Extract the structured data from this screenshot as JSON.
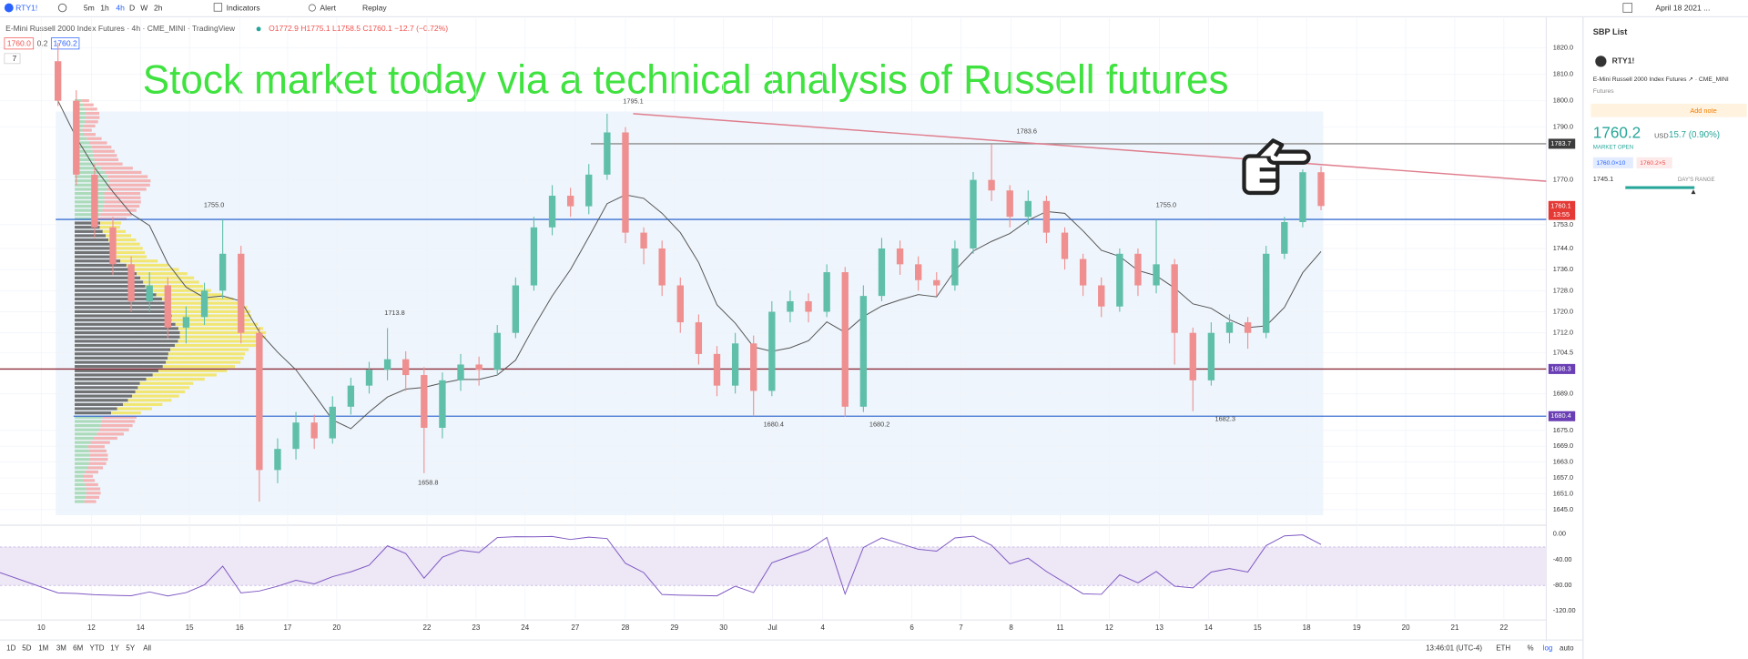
{
  "toolbar": {
    "symbol": "RTY1!",
    "intervals": [
      "5m",
      "1h",
      "4h",
      "D",
      "W",
      "2h"
    ],
    "indicators": "Indicators",
    "alert": "Alert",
    "replay": "Replay",
    "date": "April 18 2021 ..."
  },
  "legend": {
    "title": "E-Mini Russell 2000 Index Futures · 4h · CME_MINI · TradingView",
    "ohlc": "O1772.9 H1775.1 L1758.5 C1760.1 −12.7 (−0.72%)",
    "bid": "1760.0",
    "spread": "0.2",
    "ask": "1760.2",
    "count": "7"
  },
  "headline": "Stock market today via a technical analysis of Russell futures",
  "chart": {
    "type": "candlestick",
    "up_color": "#5fbfa9",
    "down_color": "#ef8f8f",
    "candles": [
      [
        1815,
        1822,
        1798,
        1800
      ],
      [
        1800,
        1804,
        1768,
        1772
      ],
      [
        1772,
        1776,
        1748,
        1752
      ],
      [
        1752,
        1756,
        1734,
        1738
      ],
      [
        1738,
        1741,
        1720,
        1724
      ],
      [
        1724,
        1735,
        1720,
        1730
      ],
      [
        1730,
        1733,
        1710,
        1714
      ],
      [
        1714,
        1722,
        1708,
        1718
      ],
      [
        1718,
        1731,
        1715,
        1728
      ],
      [
        1728,
        1755,
        1725,
        1742
      ],
      [
        1742,
        1745,
        1708,
        1712
      ],
      [
        1712,
        1714,
        1648,
        1660
      ],
      [
        1660,
        1672,
        1655,
        1668
      ],
      [
        1668,
        1682,
        1664,
        1678
      ],
      [
        1678,
        1681,
        1668,
        1672
      ],
      [
        1672,
        1688,
        1670,
        1684
      ],
      [
        1684,
        1695,
        1681,
        1692
      ],
      [
        1692,
        1701,
        1689,
        1698
      ],
      [
        1698,
        1713.8,
        1694,
        1702
      ],
      [
        1702,
        1705,
        1690,
        1696
      ],
      [
        1696,
        1699,
        1658.8,
        1676
      ],
      [
        1676,
        1697,
        1672,
        1694
      ],
      [
        1694,
        1704,
        1690,
        1700
      ],
      [
        1700,
        1703,
        1692,
        1698
      ],
      [
        1698,
        1715,
        1696,
        1712
      ],
      [
        1712,
        1733,
        1710,
        1730
      ],
      [
        1730,
        1756,
        1728,
        1752
      ],
      [
        1752,
        1768,
        1749,
        1764
      ],
      [
        1764,
        1767,
        1756,
        1760
      ],
      [
        1760,
        1776,
        1757,
        1772
      ],
      [
        1772,
        1795.1,
        1770,
        1788
      ],
      [
        1788,
        1790,
        1746,
        1750
      ],
      [
        1750,
        1752,
        1738,
        1744
      ],
      [
        1744,
        1747,
        1726,
        1730
      ],
      [
        1730,
        1733,
        1712,
        1716
      ],
      [
        1716,
        1719,
        1700,
        1704
      ],
      [
        1704,
        1707,
        1688,
        1692
      ],
      [
        1692,
        1712,
        1689,
        1708
      ],
      [
        1708,
        1711,
        1680.4,
        1690
      ],
      [
        1690,
        1724,
        1688,
        1720
      ],
      [
        1720,
        1728,
        1716,
        1724
      ],
      [
        1724,
        1727,
        1716,
        1720
      ],
      [
        1720,
        1738,
        1718,
        1735
      ],
      [
        1735,
        1737,
        1680.2,
        1684
      ],
      [
        1684,
        1730,
        1682,
        1726
      ],
      [
        1726,
        1748,
        1724,
        1744
      ],
      [
        1744,
        1747,
        1734,
        1738
      ],
      [
        1738,
        1741,
        1728,
        1732
      ],
      [
        1732,
        1735,
        1726,
        1730
      ],
      [
        1730,
        1747,
        1728,
        1744
      ],
      [
        1744,
        1773,
        1742,
        1770
      ],
      [
        1770,
        1783.6,
        1762,
        1766
      ],
      [
        1766,
        1768,
        1752,
        1756
      ],
      [
        1756,
        1766,
        1753,
        1762
      ],
      [
        1762,
        1764,
        1746,
        1750
      ],
      [
        1750,
        1752,
        1736,
        1740
      ],
      [
        1740,
        1742,
        1726,
        1730
      ],
      [
        1730,
        1733,
        1718,
        1722
      ],
      [
        1722,
        1744,
        1720,
        1742
      ],
      [
        1742,
        1744,
        1726,
        1730
      ],
      [
        1730,
        1755,
        1727,
        1738
      ],
      [
        1738,
        1740,
        1700,
        1712
      ],
      [
        1712,
        1714,
        1682.3,
        1694
      ],
      [
        1694,
        1716,
        1692,
        1712
      ],
      [
        1712,
        1719,
        1708,
        1716
      ],
      [
        1716,
        1718,
        1706,
        1712
      ],
      [
        1712,
        1745,
        1710,
        1742
      ],
      [
        1742,
        1756,
        1740,
        1754
      ],
      [
        1754,
        1774,
        1752,
        1772.9
      ],
      [
        1772.9,
        1775.1,
        1758.5,
        1760.1
      ]
    ],
    "ylim": [
      1639.5,
      1830.6
    ],
    "yticks": [
      {
        "value": 1820,
        "label": "1820.0"
      },
      {
        "value": 1810,
        "label": "1810.0"
      },
      {
        "value": 1800,
        "label": "1800.0"
      },
      {
        "value": 1790,
        "label": "1790.0"
      },
      {
        "value": 1770,
        "label": "1770.0"
      },
      {
        "value": 1753,
        "label": "1753.0"
      },
      {
        "value": 1744,
        "label": "1744.0"
      },
      {
        "value": 1736,
        "label": "1736.0"
      },
      {
        "value": 1728,
        "label": "1728.0"
      },
      {
        "value": 1720,
        "label": "1720.0"
      },
      {
        "value": 1712,
        "label": "1712.0"
      },
      {
        "value": 1704.5,
        "label": "1704.5"
      },
      {
        "value": 1689,
        "label": "1689.0"
      },
      {
        "value": 1675,
        "label": "1675.0"
      },
      {
        "value": 1669,
        "label": "1669.0"
      },
      {
        "value": 1663,
        "label": "1663.0"
      },
      {
        "value": 1657,
        "label": "1657.0"
      },
      {
        "value": 1651,
        "label": "1651.0"
      },
      {
        "value": 1645,
        "label": "1645.0"
      }
    ],
    "xticks": [
      "10",
      "12",
      "14",
      "15",
      "16",
      "17",
      "20",
      "22",
      "23",
      "24",
      "27",
      "28",
      "29",
      "30",
      "Jul",
      "4",
      "6",
      "7",
      "8",
      "11",
      "12",
      "13",
      "14",
      "15",
      "18",
      "19",
      "20",
      "21",
      "22"
    ],
    "levels": [
      {
        "value": 1783.7,
        "color": "#8c8c8c"
      },
      {
        "value": 1755,
        "color": "#3b6fd0"
      },
      {
        "value": 1698.3,
        "color": "#8b2d3b"
      },
      {
        "value": 1680.4,
        "color": "#3b6fd0"
      }
    ],
    "trendline": {
      "values": [
        1795.1,
        1769.5
      ],
      "color": "#e07d8d"
    },
    "annotations": [
      "1755.0",
      "1755.0",
      "1713.8",
      "1658.8",
      "1795.1",
      "1783.6",
      "1680.4",
      "1680.2",
      "1682.3"
    ],
    "price_badges": [
      {
        "value": 1783.7,
        "color": "#3c3c3c"
      },
      {
        "value": 1760.1,
        "color": "#e53935"
      },
      {
        "value": 1698.3,
        "color": "#6a3fb5"
      },
      {
        "value": 1680.4,
        "color": "#6a3fb5"
      }
    ],
    "timer": "13:55"
  },
  "oscillator": {
    "ylim": [
      -132.2,
      12.2
    ],
    "yticks": [
      {
        "value": 0,
        "label": "0.00"
      },
      {
        "value": -40,
        "label": "-40.00"
      },
      {
        "value": -80,
        "label": "-80.00"
      },
      {
        "value": -120,
        "label": "-120.00"
      }
    ],
    "band": [
      -80,
      -20
    ],
    "color": "#7e57c2"
  },
  "right_panel": {
    "title": "SBP List",
    "symbol": "RTY1!",
    "name": "E-Mini Russell 2000 Index Futures ↗ · CME_MINI",
    "kind": "Futures",
    "note": "Add note",
    "price": "1760.2",
    "currency": "USD",
    "change": "15.7 (0.90%)",
    "status": "MARKET OPEN",
    "bid": "1760.0×10",
    "ask": "1760.2×5",
    "low": "1745.1",
    "range": "DAY'S RANGE"
  },
  "bottom_bar": {
    "ranges": [
      "1D",
      "5D",
      "1M",
      "3M",
      "6M",
      "YTD",
      "1Y",
      "5Y",
      "All"
    ],
    "time": "13:46:01 (UTC-4)",
    "session": "ETH",
    "percent": "%",
    "log": "log",
    "auto": "auto"
  }
}
